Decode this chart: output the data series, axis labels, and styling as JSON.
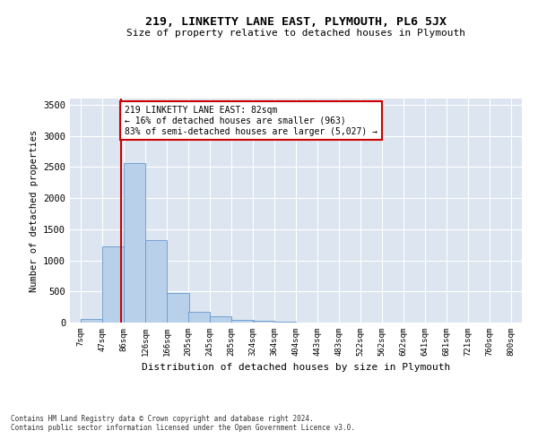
{
  "title": "219, LINKETTY LANE EAST, PLYMOUTH, PL6 5JX",
  "subtitle": "Size of property relative to detached houses in Plymouth",
  "xlabel": "Distribution of detached houses by size in Plymouth",
  "ylabel": "Number of detached properties",
  "footnote1": "Contains HM Land Registry data © Crown copyright and database right 2024.",
  "footnote2": "Contains public sector information licensed under the Open Government Licence v3.0.",
  "annotation_line1": "219 LINKETTY LANE EAST: 82sqm",
  "annotation_line2": "← 16% of detached houses are smaller (963)",
  "annotation_line3": "83% of semi-detached houses are larger (5,027) →",
  "property_size_sqm": 82,
  "bar_color": "#b8d0ea",
  "bar_edge_color": "#6699cc",
  "marker_line_color": "#cc0000",
  "background_color": "#dde6f0",
  "annotation_box_edge_color": "#cc0000",
  "annotation_box_face_color": "#ffffff",
  "categories": [
    "7sqm",
    "47sqm",
    "86sqm",
    "126sqm",
    "166sqm",
    "205sqm",
    "245sqm",
    "285sqm",
    "324sqm",
    "364sqm",
    "404sqm",
    "443sqm",
    "483sqm",
    "522sqm",
    "562sqm",
    "602sqm",
    "641sqm",
    "681sqm",
    "721sqm",
    "760sqm",
    "800sqm"
  ],
  "bin_edges": [
    7,
    47,
    86,
    126,
    166,
    205,
    245,
    285,
    324,
    364,
    404,
    443,
    483,
    522,
    562,
    602,
    641,
    681,
    721,
    760,
    800
  ],
  "values": [
    60,
    1220,
    2570,
    1330,
    470,
    175,
    100,
    50,
    35,
    10,
    5,
    0,
    0,
    0,
    0,
    0,
    0,
    0,
    0,
    0
  ],
  "ylim": [
    0,
    3600
  ],
  "yticks": [
    0,
    500,
    1000,
    1500,
    2000,
    2500,
    3000,
    3500
  ]
}
